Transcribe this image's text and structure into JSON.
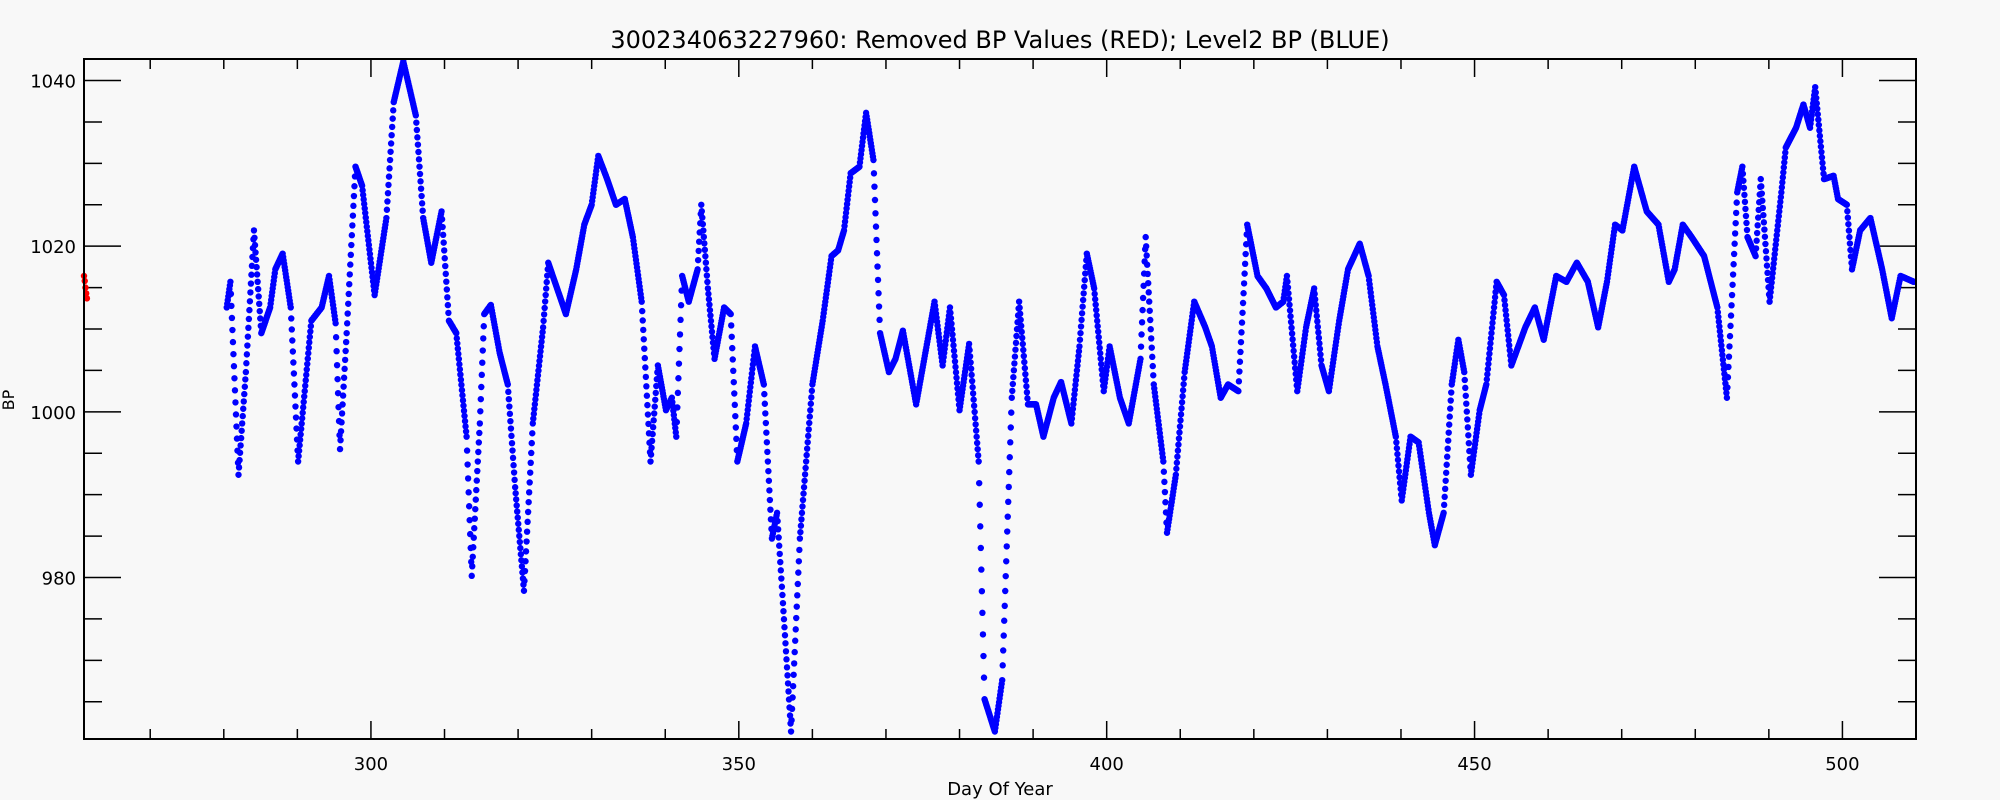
{
  "chart_data": {
    "type": "scatter",
    "title": "300234063227960: Removed BP Values (RED); Level2 BP (BLUE)",
    "xlabel": "Day Of Year",
    "ylabel": "BP",
    "xlim": [
      261,
      510
    ],
    "ylim": [
      960.5,
      1042.6
    ],
    "x_major_ticks": [
      300,
      350,
      400,
      450,
      500
    ],
    "x_minor_step": 10,
    "y_major_ticks": [
      980,
      1000,
      1020,
      1040
    ],
    "y_minor_step": 5,
    "grid": false,
    "legend": "none",
    "series": [
      {
        "name": "Removed BP Values (RED)",
        "color": "#ff0000",
        "points": [
          [
            261.0,
            1016.4
          ],
          [
            261.1,
            1015.8
          ],
          [
            261.2,
            1015.0
          ],
          [
            261.3,
            1014.3
          ],
          [
            261.4,
            1013.7
          ]
        ]
      },
      {
        "name": "Level2 BP (BLUE)",
        "color": "#0000ff",
        "points": [
          [
            280.4,
            1012.6
          ],
          [
            280.9,
            1015.7
          ],
          [
            282.0,
            992.4
          ],
          [
            283.0,
            1004.8
          ],
          [
            284.1,
            1021.9
          ],
          [
            285.1,
            1009.5
          ],
          [
            286.3,
            1012.6
          ],
          [
            287.0,
            1017.2
          ],
          [
            288.0,
            1019.1
          ],
          [
            289.1,
            1012.6
          ],
          [
            290.1,
            994.0
          ],
          [
            291.9,
            1011.0
          ],
          [
            293.3,
            1012.6
          ],
          [
            294.3,
            1016.4
          ],
          [
            295.2,
            1010.7
          ],
          [
            295.8,
            995.5
          ],
          [
            296.7,
            1009.5
          ],
          [
            297.9,
            1029.6
          ],
          [
            298.8,
            1027.3
          ],
          [
            300.5,
            1014.1
          ],
          [
            302.1,
            1023.4
          ],
          [
            303.1,
            1037.4
          ],
          [
            304.4,
            1042.3
          ],
          [
            306.1,
            1035.8
          ],
          [
            307.1,
            1023.4
          ],
          [
            308.2,
            1018.0
          ],
          [
            309.6,
            1024.2
          ],
          [
            310.6,
            1011.0
          ],
          [
            311.6,
            1009.5
          ],
          [
            313.0,
            997.0
          ],
          [
            313.7,
            980.2
          ],
          [
            314.8,
            998.6
          ],
          [
            315.4,
            1011.8
          ],
          [
            316.3,
            1012.9
          ],
          [
            317.5,
            1007.1
          ],
          [
            318.6,
            1003.3
          ],
          [
            319.6,
            990.9
          ],
          [
            320.8,
            978.4
          ],
          [
            322.0,
            998.6
          ],
          [
            323.4,
            1010.2
          ],
          [
            324.1,
            1018.0
          ],
          [
            325.3,
            1014.9
          ],
          [
            326.5,
            1011.8
          ],
          [
            327.9,
            1017.2
          ],
          [
            329.0,
            1022.6
          ],
          [
            330.0,
            1025.0
          ],
          [
            330.9,
            1030.9
          ],
          [
            332.1,
            1028.1
          ],
          [
            333.3,
            1025.0
          ],
          [
            334.5,
            1025.7
          ],
          [
            335.6,
            1021.1
          ],
          [
            336.8,
            1013.3
          ],
          [
            338.0,
            994.0
          ],
          [
            339.0,
            1005.6
          ],
          [
            340.1,
            1000.2
          ],
          [
            340.9,
            1001.7
          ],
          [
            341.5,
            997.0
          ],
          [
            342.3,
            1016.4
          ],
          [
            343.2,
            1013.3
          ],
          [
            344.4,
            1017.2
          ],
          [
            344.9,
            1025.0
          ],
          [
            345.8,
            1014.9
          ],
          [
            346.7,
            1006.4
          ],
          [
            348.0,
            1012.6
          ],
          [
            348.9,
            1011.8
          ],
          [
            349.8,
            994.0
          ],
          [
            351.0,
            998.6
          ],
          [
            352.2,
            1007.9
          ],
          [
            353.4,
            1003.3
          ],
          [
            354.5,
            984.7
          ],
          [
            355.2,
            987.8
          ],
          [
            356.0,
            976.9
          ],
          [
            357.1,
            961.4
          ],
          [
            358.3,
            984.7
          ],
          [
            360.0,
            1003.3
          ],
          [
            361.4,
            1011.0
          ],
          [
            362.6,
            1018.8
          ],
          [
            363.5,
            1019.5
          ],
          [
            364.3,
            1021.9
          ],
          [
            365.2,
            1028.8
          ],
          [
            366.4,
            1029.6
          ],
          [
            367.3,
            1036.1
          ],
          [
            368.3,
            1030.4
          ],
          [
            369.2,
            1009.5
          ],
          [
            370.4,
            1004.8
          ],
          [
            371.3,
            1006.4
          ],
          [
            372.3,
            1009.8
          ],
          [
            374.1,
            1000.9
          ],
          [
            376.6,
            1013.3
          ],
          [
            377.7,
            1005.6
          ],
          [
            378.7,
            1012.6
          ],
          [
            380.0,
            1000.2
          ],
          [
            381.3,
            1008.2
          ],
          [
            382.6,
            994.0
          ],
          [
            383.4,
            965.3
          ],
          [
            384.8,
            961.4
          ],
          [
            385.8,
            967.6
          ],
          [
            387.1,
            1001.7
          ],
          [
            388.1,
            1013.3
          ],
          [
            389.3,
            1000.9
          ],
          [
            390.4,
            1000.9
          ],
          [
            391.4,
            997.0
          ],
          [
            392.8,
            1001.7
          ],
          [
            393.8,
            1003.6
          ],
          [
            395.2,
            998.6
          ],
          [
            396.3,
            1007.9
          ],
          [
            397.3,
            1019.1
          ],
          [
            398.3,
            1014.9
          ],
          [
            399.6,
            1002.5
          ],
          [
            400.4,
            1007.9
          ],
          [
            401.8,
            1001.7
          ],
          [
            403.0,
            998.6
          ],
          [
            404.6,
            1006.4
          ],
          [
            405.3,
            1021.1
          ],
          [
            406.4,
            1003.3
          ],
          [
            407.7,
            994.0
          ],
          [
            408.2,
            985.4
          ],
          [
            409.4,
            992.4
          ],
          [
            410.6,
            1004.8
          ],
          [
            411.9,
            1013.3
          ],
          [
            413.4,
            1010.2
          ],
          [
            414.3,
            1007.9
          ],
          [
            415.5,
            1001.7
          ],
          [
            416.5,
            1003.3
          ],
          [
            417.9,
            1002.5
          ],
          [
            419.1,
            1022.6
          ],
          [
            420.5,
            1016.4
          ],
          [
            421.7,
            1014.9
          ],
          [
            423.0,
            1012.6
          ],
          [
            424.0,
            1013.3
          ],
          [
            424.5,
            1016.4
          ],
          [
            425.9,
            1002.5
          ],
          [
            427.1,
            1010.2
          ],
          [
            428.2,
            1014.9
          ],
          [
            429.2,
            1005.6
          ],
          [
            430.2,
            1002.5
          ],
          [
            431.6,
            1011.0
          ],
          [
            432.8,
            1017.2
          ],
          [
            434.4,
            1020.3
          ],
          [
            435.6,
            1016.4
          ],
          [
            436.8,
            1007.9
          ],
          [
            437.9,
            1003.3
          ],
          [
            439.3,
            997.0
          ],
          [
            440.1,
            989.3
          ],
          [
            441.3,
            997.0
          ],
          [
            442.4,
            996.3
          ],
          [
            443.8,
            987.8
          ],
          [
            444.6,
            983.9
          ],
          [
            445.8,
            987.8
          ],
          [
            446.9,
            1003.3
          ],
          [
            447.8,
            1008.7
          ],
          [
            448.6,
            1004.8
          ],
          [
            449.5,
            992.4
          ],
          [
            450.7,
            1000.2
          ],
          [
            451.6,
            1003.3
          ],
          [
            453.0,
            1015.7
          ],
          [
            454.0,
            1014.1
          ],
          [
            455.0,
            1005.6
          ],
          [
            456.9,
            1010.2
          ],
          [
            458.2,
            1012.6
          ],
          [
            459.4,
            1008.7
          ],
          [
            461.1,
            1016.4
          ],
          [
            462.5,
            1015.7
          ],
          [
            463.9,
            1018.0
          ],
          [
            465.4,
            1015.7
          ],
          [
            466.8,
            1010.2
          ],
          [
            468.0,
            1015.7
          ],
          [
            469.1,
            1022.6
          ],
          [
            470.1,
            1021.9
          ],
          [
            471.7,
            1029.6
          ],
          [
            473.4,
            1024.2
          ],
          [
            475.0,
            1022.6
          ],
          [
            476.4,
            1015.7
          ],
          [
            477.2,
            1017.2
          ],
          [
            478.3,
            1022.6
          ],
          [
            479.5,
            1021.1
          ],
          [
            481.2,
            1018.8
          ],
          [
            483.0,
            1012.6
          ],
          [
            484.3,
            1001.7
          ],
          [
            485.7,
            1026.5
          ],
          [
            486.4,
            1029.6
          ],
          [
            487.1,
            1021.1
          ],
          [
            488.2,
            1018.8
          ],
          [
            488.9,
            1028.1
          ],
          [
            490.1,
            1013.3
          ],
          [
            491.7,
            1026.5
          ],
          [
            492.3,
            1031.9
          ],
          [
            493.7,
            1034.3
          ],
          [
            494.7,
            1037.1
          ],
          [
            495.6,
            1034.3
          ],
          [
            496.3,
            1039.2
          ],
          [
            497.5,
            1028.1
          ],
          [
            498.8,
            1028.5
          ],
          [
            499.4,
            1025.7
          ],
          [
            500.6,
            1025.0
          ],
          [
            501.3,
            1017.2
          ],
          [
            502.4,
            1021.9
          ],
          [
            503.8,
            1023.4
          ],
          [
            505.4,
            1017.2
          ],
          [
            506.7,
            1011.3
          ],
          [
            507.9,
            1016.4
          ],
          [
            509.7,
            1015.7
          ]
        ]
      }
    ]
  }
}
